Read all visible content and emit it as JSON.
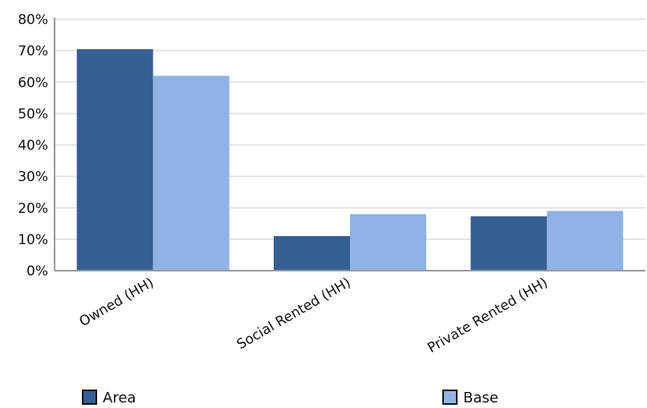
{
  "chart_data": {
    "type": "bar",
    "categories": [
      "Owned (HH)",
      "Social Rented (HH)",
      "Private Rented (HH)"
    ],
    "series": [
      {
        "name": "Area",
        "values": [
          70.5,
          11,
          17.3
        ],
        "color": "#355e91"
      },
      {
        "name": "Base",
        "values": [
          62,
          18,
          19
        ],
        "color": "#8fb3e4"
      }
    ],
    "y_ticks": [
      "0%",
      "10%",
      "20%",
      "30%",
      "40%",
      "50%",
      "60%",
      "70%",
      "80%"
    ],
    "ylim": [
      0,
      80
    ],
    "grid": true,
    "legend_position": "bottom",
    "title": "",
    "xlabel": "",
    "ylabel": ""
  }
}
